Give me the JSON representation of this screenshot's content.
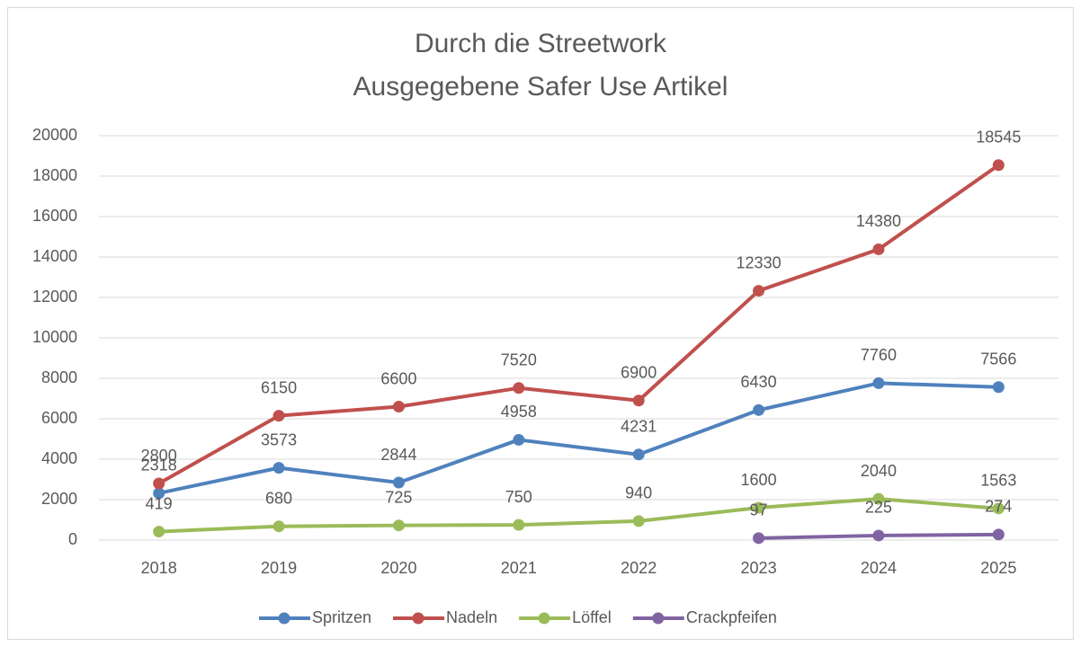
{
  "chart_data": {
    "type": "line",
    "title": [
      "Durch die Streetwork",
      "Ausgegebene Safer Use Artikel"
    ],
    "categories": [
      "2018",
      "2019",
      "2020",
      "2021",
      "2022",
      "2023",
      "2024",
      "2025"
    ],
    "series": [
      {
        "name": "Spritzen",
        "color": "#4f81bd",
        "values": [
          2318,
          3573,
          2844,
          4958,
          4231,
          6430,
          7760,
          7566
        ]
      },
      {
        "name": "Nadeln",
        "color": "#c0504d",
        "values": [
          2800,
          6150,
          6600,
          7520,
          6900,
          12330,
          14380,
          18545
        ]
      },
      {
        "name": "Löffel",
        "color": "#9bbb59",
        "values": [
          419,
          680,
          725,
          750,
          940,
          1600,
          2040,
          1563
        ]
      },
      {
        "name": "Crackpfeifen",
        "color": "#8064a2",
        "values": [
          null,
          null,
          null,
          null,
          null,
          97,
          225,
          274
        ]
      }
    ],
    "ylim": [
      0,
      20000
    ],
    "yticks": [
      0,
      2000,
      4000,
      6000,
      8000,
      10000,
      12000,
      14000,
      16000,
      18000,
      20000
    ],
    "grid": true,
    "legend": "bottom"
  }
}
